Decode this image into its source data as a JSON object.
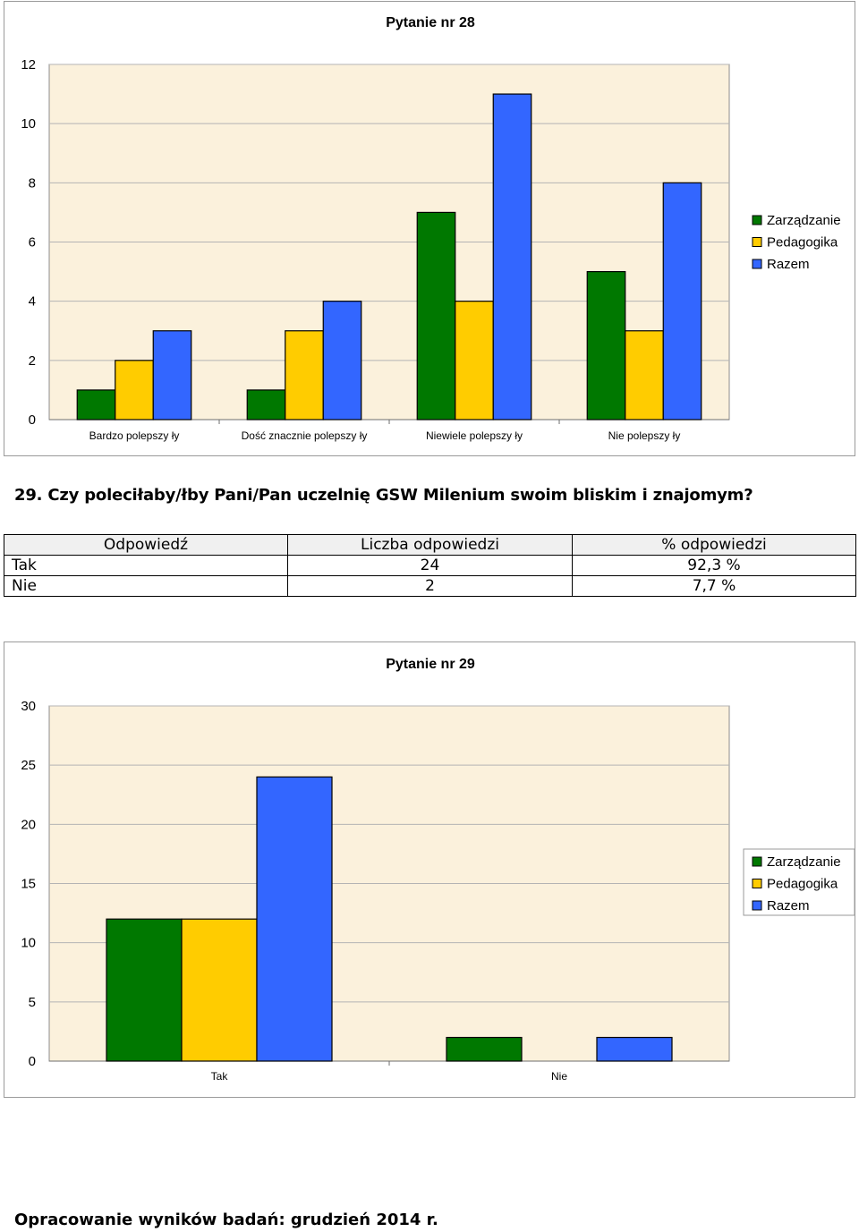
{
  "chart_data": [
    {
      "type": "bar",
      "title": "Pytanie nr 28",
      "categories": [
        "Bardzo polepszy ły",
        "Dość znacznie polepszy ły",
        "Niewiele polepszy ły",
        "Nie polepszy ły"
      ],
      "series": [
        {
          "name": "Zarządzanie",
          "values": [
            1,
            1,
            7,
            5
          ]
        },
        {
          "name": "Pedagogika",
          "values": [
            2,
            3,
            4,
            3
          ]
        },
        {
          "name": "Razem",
          "values": [
            3,
            4,
            11,
            8
          ]
        }
      ],
      "ylim": [
        0,
        12
      ],
      "yticks": [
        0,
        2,
        4,
        6,
        8,
        10,
        12
      ],
      "grid": true,
      "legend": "right"
    },
    {
      "type": "bar",
      "title": "Pytanie nr 29",
      "categories": [
        "Tak",
        "Nie"
      ],
      "series": [
        {
          "name": "Zarządzanie",
          "values": [
            12,
            2
          ]
        },
        {
          "name": "Pedagogika",
          "values": [
            12,
            0
          ]
        },
        {
          "name": "Razem",
          "values": [
            24,
            2
          ]
        }
      ],
      "ylim": [
        0,
        30
      ],
      "yticks": [
        0,
        5,
        10,
        15,
        20,
        25,
        30
      ],
      "grid": true,
      "legend": "right"
    }
  ],
  "colors": {
    "zarzadzanie": "#007800",
    "pedagogika": "#ffcc00",
    "razem": "#3366ff",
    "plot_background": "#fbf1dc",
    "grid": "#b4b4b4"
  },
  "question": {
    "heading": "29. Czy poleciłaby/łby Pani/Pan uczelnię GSW Milenium swoim bliskim i znajomym?"
  },
  "table": {
    "headers": [
      "Odpowiedź",
      "Liczba odpowiedzi",
      "% odpowiedzi"
    ],
    "rows": [
      [
        "Tak",
        "24",
        "92,3 %"
      ],
      [
        "Nie",
        "2",
        "7,7 %"
      ]
    ]
  },
  "footer": "Opracowanie wyników badań:  grudzień 2014 r."
}
